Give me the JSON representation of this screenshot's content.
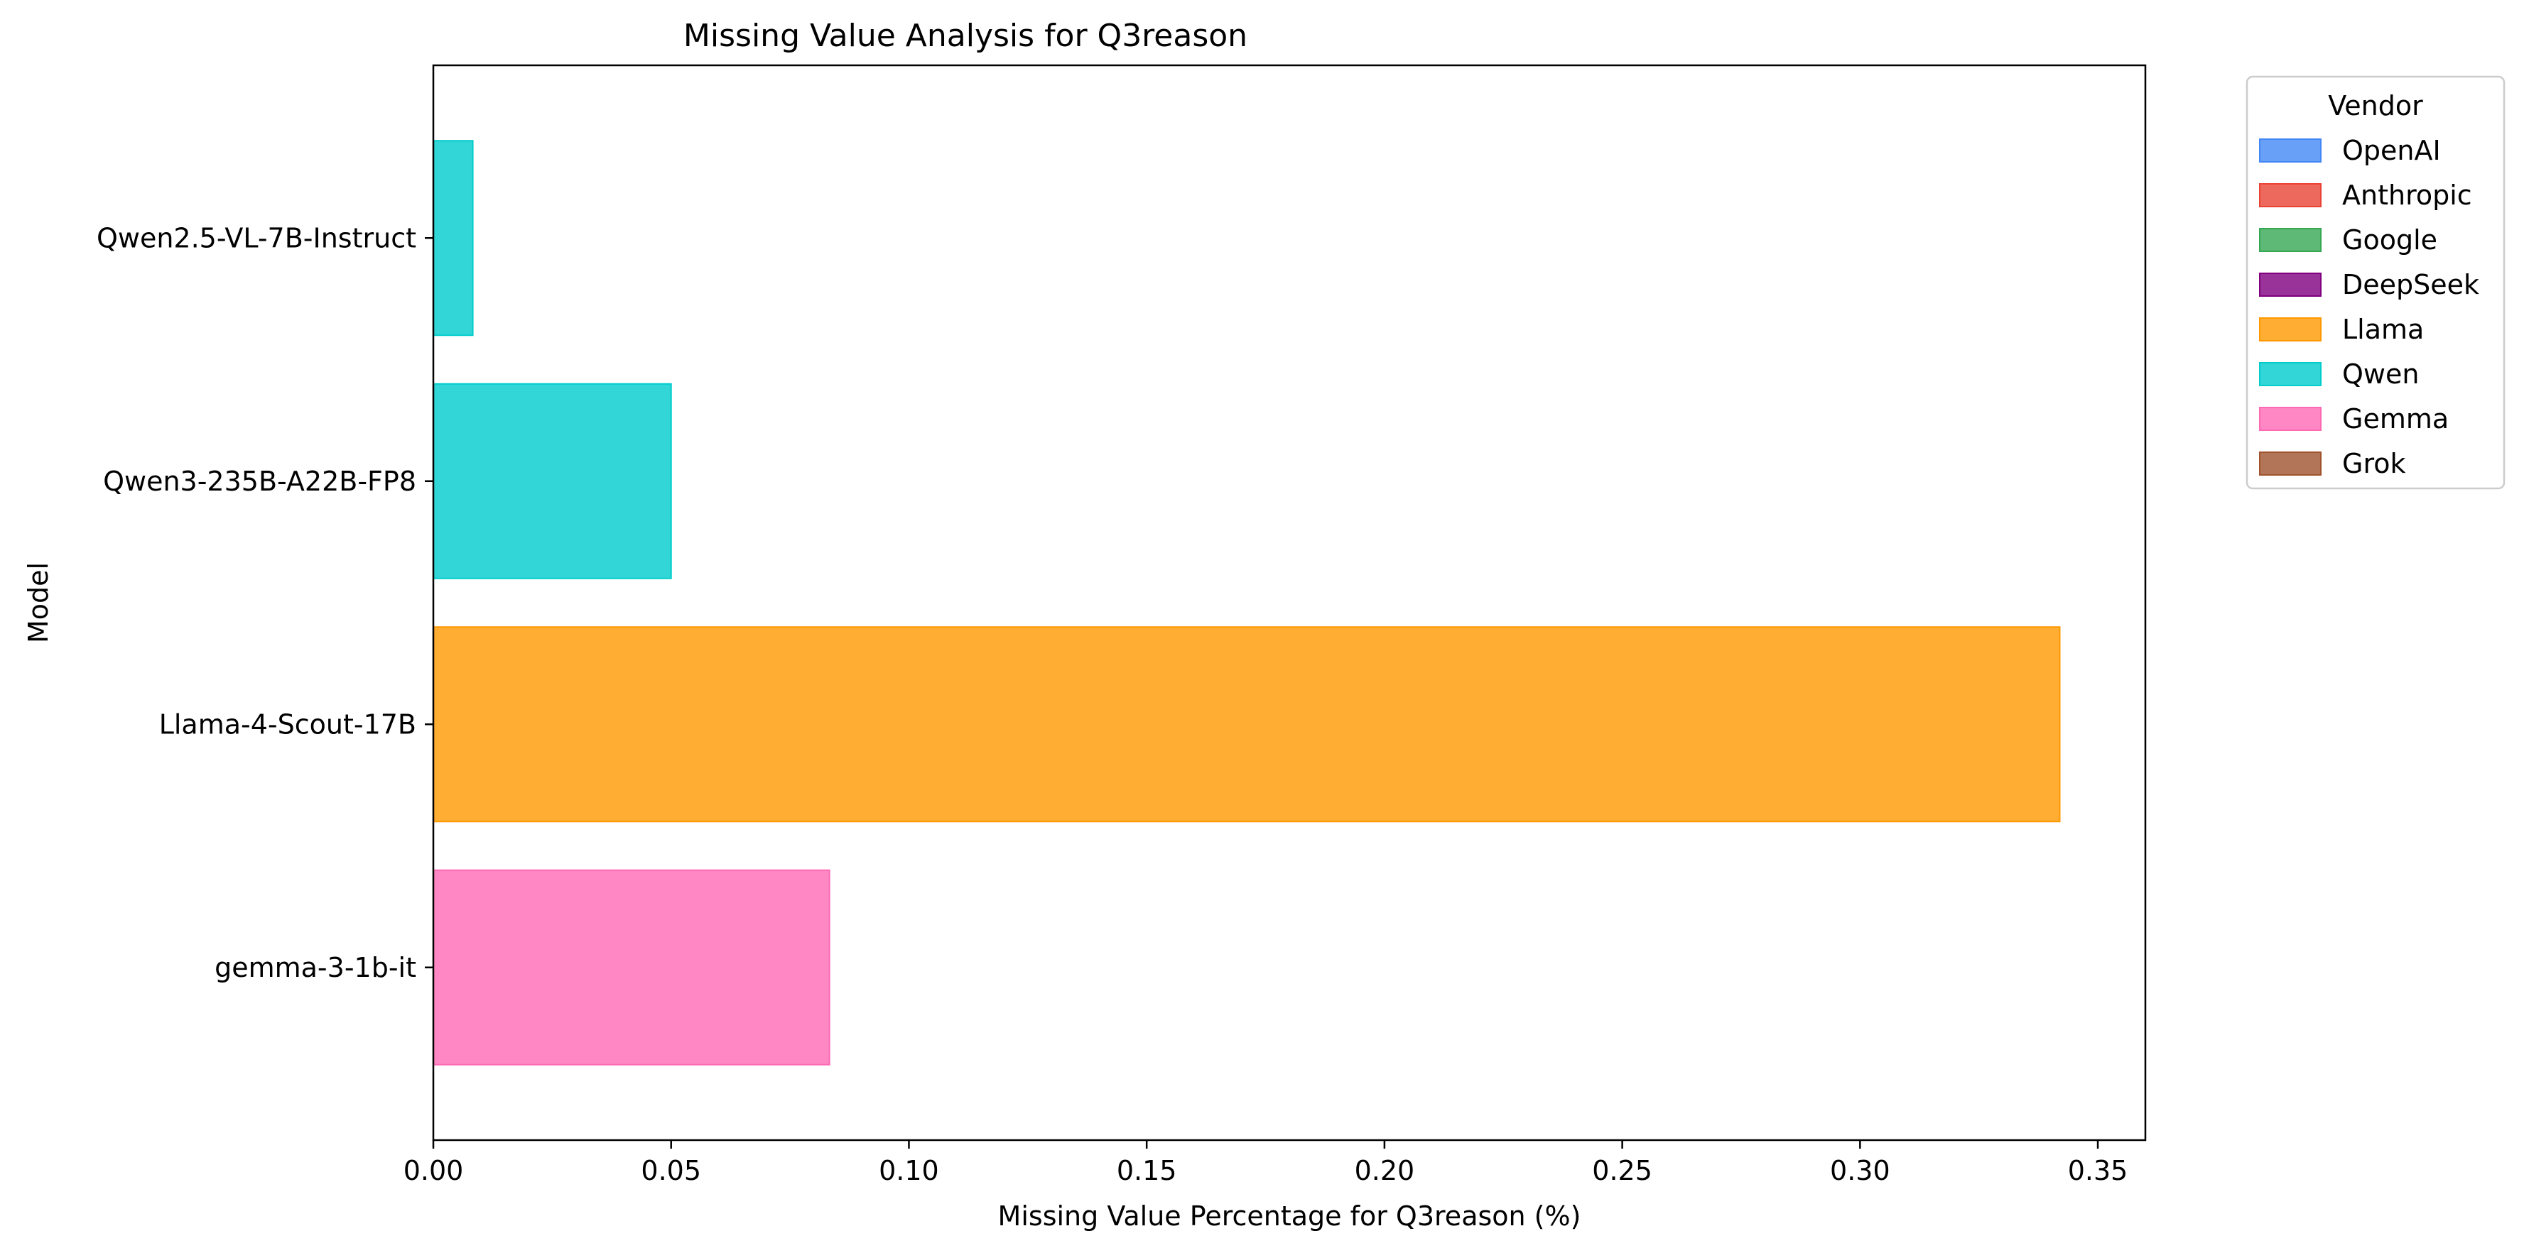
{
  "chart_data": {
    "type": "bar",
    "orientation": "horizontal",
    "title": "Missing Value Analysis for Q3reason",
    "xlabel": "Missing Value Percentage for Q3reason (%)",
    "ylabel": "Model",
    "xlim": [
      0,
      0.36
    ],
    "xticks": [
      0.0,
      0.05,
      0.1,
      0.15,
      0.2,
      0.25,
      0.3,
      0.35
    ],
    "xtick_labels": [
      "0.00",
      "0.05",
      "0.10",
      "0.15",
      "0.20",
      "0.25",
      "0.30",
      "0.35"
    ],
    "grid": false,
    "bars": [
      {
        "model": "Qwen2.5-VL-7B-Instruct",
        "value": 0.0083,
        "vendor": "Qwen"
      },
      {
        "model": "Qwen3-235B-A22B-FP8",
        "value": 0.05,
        "vendor": "Qwen"
      },
      {
        "model": "Llama-4-Scout-17B",
        "value": 0.342,
        "vendor": "Llama"
      },
      {
        "model": "gemma-3-1b-it",
        "value": 0.0833,
        "vendor": "Gemma"
      }
    ],
    "legend": {
      "title": "Vendor",
      "placement": "outside-upper-right",
      "entries": [
        {
          "name": "OpenAI",
          "color": "#4287f5"
        },
        {
          "name": "Anthropic",
          "color": "#ea4335"
        },
        {
          "name": "Google",
          "color": "#34a853"
        },
        {
          "name": "DeepSeek",
          "color": "#800080"
        },
        {
          "name": "Llama",
          "color": "#ff9800"
        },
        {
          "name": "Qwen",
          "color": "#00cccc"
        },
        {
          "name": "Gemma",
          "color": "#ff69b4"
        },
        {
          "name": "Grok",
          "color": "#a0522d"
        }
      ]
    }
  }
}
